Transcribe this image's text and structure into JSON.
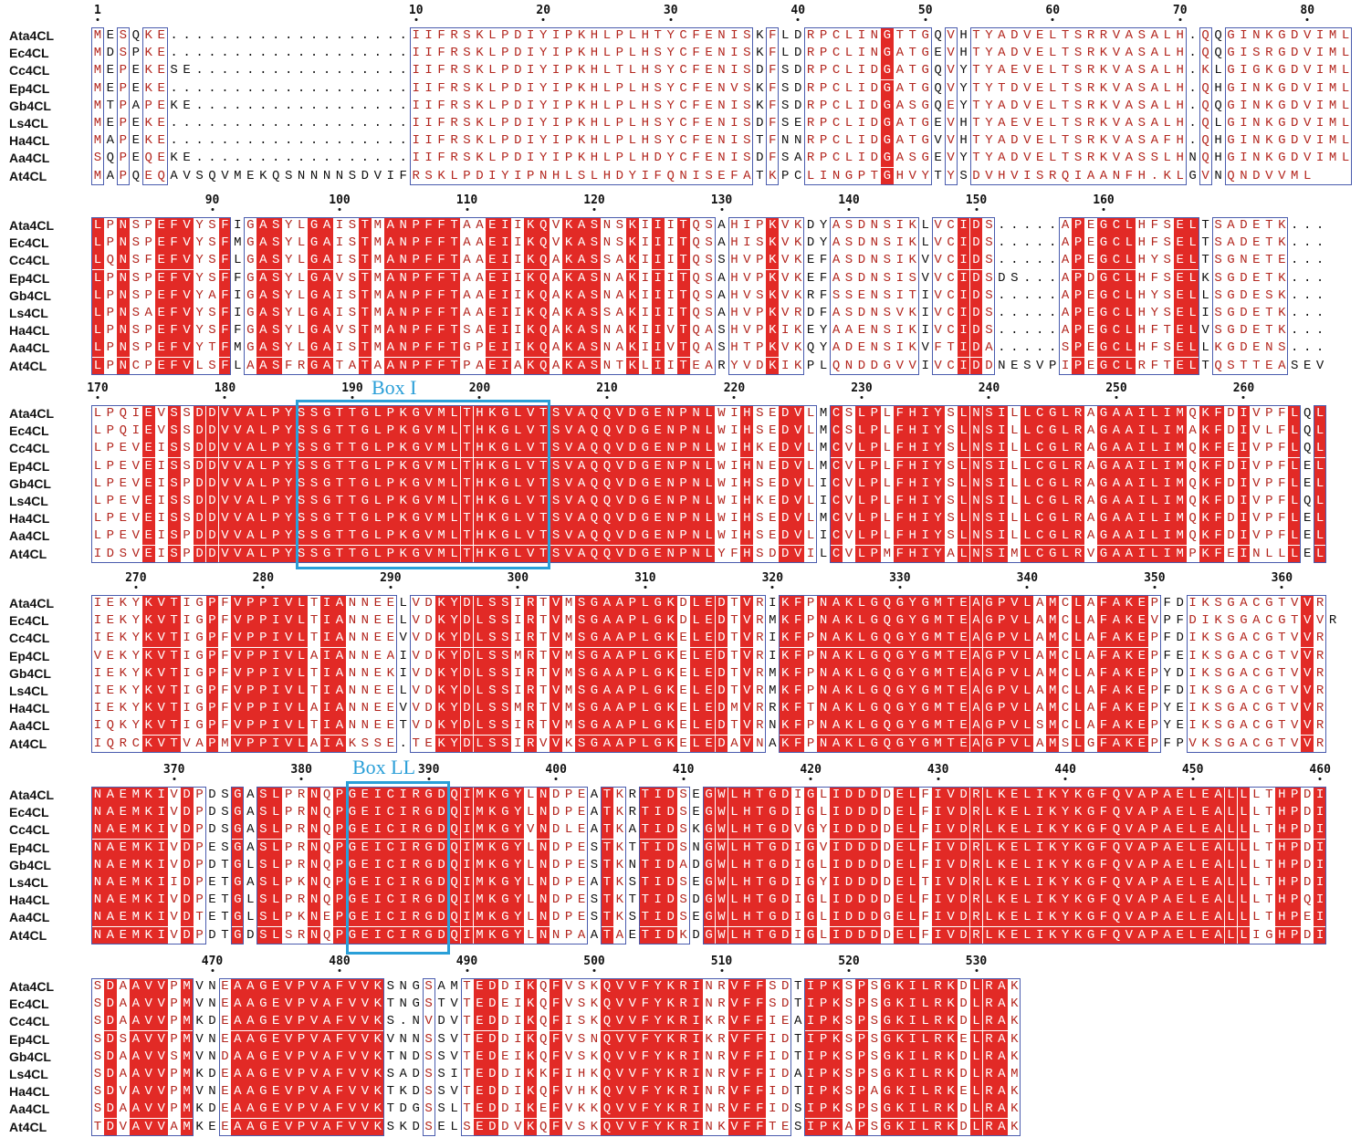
{
  "species": [
    "Ata4CL",
    "Ec4CL",
    "Cc4CL",
    "Ep4CL",
    "Gb4CL",
    "Ls4CL",
    "Ha4CL",
    "Aa4CL",
    "At4CL"
  ],
  "motifs": [
    {
      "label": "Box I",
      "block": 2
    },
    {
      "label": "Box LL",
      "block": 4
    }
  ],
  "blocks": [
    {
      "ticks": [
        {
          "label": "1",
          "col": 0
        },
        {
          "label": "10",
          "col": 25
        },
        {
          "label": "20",
          "col": 35
        },
        {
          "label": "30",
          "col": 45
        },
        {
          "label": "40",
          "col": 55
        },
        {
          "label": "50",
          "col": 65
        },
        {
          "label": "60",
          "col": 75
        },
        {
          "label": "70",
          "col": 85
        },
        {
          "label": "80",
          "col": 95
        }
      ],
      "rows": [
        "MESQKE...................IIFRSKLPDIYIPKHLPLHTYCFENISKFLDRPCLINGTTGQVHTYADVELTSRRVASALH.QQGINKGDVIML",
        "MDSPKE...................IIFRSKLPDIYIPKHLPLHSYCFENISKFLDRPCLINGATGEVHTYADVELTSRKVASALH.QQGISRGDVIML",
        "MEPEKESE.................IIFRSKLPDIYIPKHLTLHSYCFENISDFSDRPCLIDGATGQVYTYAEVELTSRKVASALH.KLGIGKGDVIML",
        "MEPEKE...................IIFRSKLPDIYIPKHLPLHSYCFENVSKFSDRPCLIDGATGQVYTYTDVELTSRKVASALH.QHGINKGDVIML",
        "MTPAPEKE.................IIFRSKLPDIYIPKHLPLHSYCFENISKFSDRPCLIDGASGQEYTYADVELTSRKVASALH.QQGINKGDVIML",
        "MEPEKE...................IIFRSKLPDIYIPKHLPLHSYCFENISDFSERPCLIDGATGEVHTYAEVELTSRKVASALH.QLGINKGDVIML",
        "MAPEKE...................IIFRSKLPDIYIPKHLPLHSYCFENISTFNNRPCLIDGATGVVHTYADVELTSRKVASAFH.QHGINKGDVIML",
        "SQPEQEKE.................IIFRSKLPDIYIPKHLPLHDYCFENISDFSARPCLIDGASGEVYTYADVELTSRKVASSLHNQHGINKGDVIML",
        "MAPQEQAVSQVMEKQSNNNNSDVIFRSKLPDIYIPNHLSLHDYIFQNISEFATKPCLINGPTGHVYTYSDVHVISRQIAANFH.KLGVNQNDVVML"
      ]
    },
    {
      "ticks": [
        {
          "label": "90",
          "col": 9
        },
        {
          "label": "100",
          "col": 19
        },
        {
          "label": "110",
          "col": 29
        },
        {
          "label": "120",
          "col": 39
        },
        {
          "label": "130",
          "col": 49
        },
        {
          "label": "140",
          "col": 59
        },
        {
          "label": "150",
          "col": 69
        },
        {
          "label": "160",
          "col": 79
        }
      ],
      "rows": [
        "LPNSPEFVYSFIGASYLGAISTMANPFFTAAEIIKQVKASNSKIIITQSAHIPKVKDYASDNSIKLVCIDS.....APEGCLHFSELTSADETK...",
        "LPNSPEFVYSFMGASYLGAISTMANPFFTAAEIIKQVKASNSKIIITQSAHISKVKDYASDNSIKLVCIDS.....APEGCLHFSELTSADETK...",
        "LQNSFEFVYSFLGASYLGAISTMANPFFTAAEIIKQAKASSAKIIITQSSHVPKVKEFASDNSIKVVCIDS.....APEGCLHYSELTSGNETE...",
        "LPNSPEFVYSFFGASYLGAVSTMANPFFTAAEIIKQAKASNAKIIITQSAHVPKVKEFASDNSISVVCIDSDS...APDGCLHFSELKSGDETK...",
        "LPNSPEFVYAFIGASYLGAISTMANPFFTAAEIIKQAKASNAKIIITQSAHVSKVKRFSSENSITIVCIDS.....APEGCLHYSELLSGDESK...",
        "LPNSAEFVYSFIGASYLGAISTMANPFFTAAEIIKQAKASSAKIIITQSAHVPKVRDFASDNSVKIVCIDS.....APEGCLHYSELISGDETK...",
        "LPNSPEFVYSFFGASYLGAVSTMANPFFTSAEIIKQAKASNAKIIVTQASHVPKIKEYAAENSIKIVCIDS.....APEGCLHFTELVSGDETK...",
        "LPNSPEFVYTFMGASYLGAISTMANPFFTGPEIIKQAKASNAKIIVTQASHTPKVKQYADENSIKVFTIDA.....SPEGCLHFSELLKGDENS...",
        "LPNCPEFVLSFLAASFRGATATAANPFFTPAEIAKQAKASNTKLIITEARYVDKIKPLQNDDGVVIVCIDDNESVPIPEGCLRFTELTQSTTEASEV"
      ]
    },
    {
      "ticks": [
        {
          "label": "170",
          "col": 0
        },
        {
          "label": "180",
          "col": 10
        },
        {
          "label": "190",
          "col": 20
        },
        {
          "label": "200",
          "col": 30
        },
        {
          "label": "210",
          "col": 40
        },
        {
          "label": "220",
          "col": 50
        },
        {
          "label": "230",
          "col": 60
        },
        {
          "label": "240",
          "col": 70
        },
        {
          "label": "250",
          "col": 80
        },
        {
          "label": "260",
          "col": 90
        }
      ],
      "rows": [
        "LPQIEVSSDDVVALPYSSGTTGLPKGVMLTHKGLVTSVAQQVDGENPNLWIHSEDVLMCSLPLFHIYSLNSILLCGLRAGAAILIMQKFDIVPFLQL",
        "LPQIEVSSDDVVALPYSSGTTGLPKGVMLTHKGLVTSVAQQVDGENPNLWIHSEDVLMCSLPLFHIYSLNSILLCGLRAGAAILIMAKFDIVLFLQL",
        "LPEVEISSDDVVALPYSSGTTGLPKGVMLTHKGLVTSVAQQVDGENPNLWIHKEDVLMCVLPLFHIYSLNSILLCGLRAGAAILIMQKFEIVPFLQL",
        "LPEVEISSDDVVALPYSSGTTGLPKGVMLTHKGLVTSVAQQVDGENPNLWIHNEDVLMCVLPLFHIYSLNSILLCGLRAGAAILIMQKFDIVPFLEL",
        "LPEVEISPDDVVALPYSSGTTGLPKGVMLTHKGLVTSVAQQVDGENPNLWIHSEDVLICVLPLFHIYSLNSILLCGLRAGAAILIMQKFDIVPFLEL",
        "LPEVEISSDDVVALPYSSGTTGLPKGVMLTHKGLVTSVAQQVDGENPNLWIHKEDVLICVLPLFHIYSLNSILLCGLRAGAAILIMQKFDIVPFLQL",
        "LPEVEISSDDVVALPYSSGTTGLPKGVMLTHKGLVTSVAQQVDGENPNLWIHSEDVLMCVLPLFHIYSLNSILLCGLRAGAAILIMQKFDIVPFLEL",
        "LPEVEISPDDVVALPYSSGTTGLPKGVMLTHKGLVTSVAQQVDGENPNLWIHSEDVLICVLPLFHIYSLNSILLCGLRAGAAILIMQKFDIVPFLEL",
        "IDSVEISPDDVVALPYSSGTTGLPKGVMLTHKGLVTSVAQQVDGENPNLYFHSDDVILCVLPMFHIYALNSIMLCGLRVGAAILIMPKFEINLLLEL"
      ]
    },
    {
      "ticks": [
        {
          "label": "270",
          "col": 3
        },
        {
          "label": "280",
          "col": 13
        },
        {
          "label": "290",
          "col": 23
        },
        {
          "label": "300",
          "col": 33
        },
        {
          "label": "310",
          "col": 43
        },
        {
          "label": "320",
          "col": 53
        },
        {
          "label": "330",
          "col": 63
        },
        {
          "label": "340",
          "col": 73
        },
        {
          "label": "350",
          "col": 83
        },
        {
          "label": "360",
          "col": 93
        }
      ],
      "rows": [
        "IEKYKVTIGPFVPPIVLTIANNEELVDKYDLSSIRTVMSGAAPLGKDLEDTVRIKFPNAKLGQGYGMTEAGPVLAMCLAFAKEPFDIKSGACGTVVR",
        "IEKYKVTIGPFVPPIVLTIANNEELVDKYDLSSIRTVMSGAAPLGKDLEDTVRMKFPNAKLGQGYGMTEAGPVLAMCLAFAKEVPFDIKSGACGTVVR",
        "IEKYKVTIGPFVPPIVLTIANNEEVVDKYDLSSIRTVMSGAAPLGKELEDTVRIKFPNAKLGQGYGMTEAGPVLAMCLAFAKEPFDIKSGACGTVVR",
        "VEKYKVTIGPFVPPIVLAIANNEAIVDKYDLSSMRTVMSGAAPLGKELEDTVRIKFPNAKLGQGYGMTEAGPVLAMCLAFAKEPFEIKSGACGTVVR",
        "IEKYKVTIGPFVPPIVLTIANNEKIVDKYDLSSIRTVMSGAAPLGKELEDTVRMKFPNAKLGQGYGMTEAGPVLAMCLAFAKEPYDIKSGACGTVVR",
        "IEKYKVTIGPFVPPIVLTIANNEELVDKYDLSSIRTVMSGAAPLGKELEDTVRMKFPNAKLGQGYGMTEAGPVLAMCLAFAKEPFDIKSGACGTVVR",
        "IEKYKVTIGPFVPPIVLAIANNEEVVDKYDLSSMRTVMSGAAPLGKELEDMVRRKFTNAKLGQGYGMTEAGPVLAMCLAFAKEPYEIKSGACGTVVR",
        "IQKYKVTIGPFVPPIVLTIANNEETVDKYDLSSIRTVMSGAAPLGKELEDTVRNKFPNAKLGQGYGMTEAGPVLSMCLAFAKEPYEIKSGACGTVVR",
        "IQRCKVTVAPMVPPIVLAIAKSSE.TEKYDLSSIRVVKSGAAPLGKELEDAVNAKFPNAKLGQGYGMTEAGPVLAMSLGFAKEPFPVKSGACGTVVR"
      ]
    },
    {
      "ticks": [
        {
          "label": "370",
          "col": 6
        },
        {
          "label": "380",
          "col": 16
        },
        {
          "label": "390",
          "col": 26
        },
        {
          "label": "400",
          "col": 36
        },
        {
          "label": "410",
          "col": 46
        },
        {
          "label": "420",
          "col": 56
        },
        {
          "label": "430",
          "col": 66
        },
        {
          "label": "440",
          "col": 76
        },
        {
          "label": "450",
          "col": 86
        },
        {
          "label": "460",
          "col": 96
        }
      ],
      "rows": [
        "NAEMKIVDPDSGASLPRNQPGEICIRGDQIMKGYLNDPEATKRTIDSEGWLHTGDIGLIDDDDELFIVDRLKELIKYKGFQVAPAELEALLLTHPDI",
        "NAEMKIVDPDSGASLPRNQPGEICIRGDQIMKGYLNDPEATKRTIDSEGWLHTGDIGLIDDDDELFIVDRLKELIKYKGFQVAPAELEALLLTHPDI",
        "NAEMKIVDPDSGASLPRNQPGEICIRGDQIMKGYVNDLEATKATIDSKGWLHTGDVGYIDDDDELFIVDRLKELIKYKGFQVAPAELEALLLTHPDI",
        "NAEMKIVDPESGASLPRNQPGEICIRGDQIMKGYLNDPESTKTTIDSNGWLHTGDIGVIDDDDELFIVDRLKELIKYKGFQVAPAELEALLLTHPDI",
        "NAEMKIVDPDTGLSLPRNQPGEICIRGDQIMKGYLNDPESTKNTIDADGWLHTGDIGLIDDDDELFIVDRLKELIKYKGFQVAPAELEALLLTHPDI",
        "NAEMKIIDPETGASLPKNQPGEICIRGDQIMKGYLNDPEATKSTIDSEGWLHTGDIGYIDDDDELTIVDRLKELIKYKGFQVAPAELEALLLTHPDI",
        "NAEMKIVDPETGLSLPRNQPGEICIRGDQIMKGYLNDPESTKTTIDSDGWLHTGDIGLIDDDDELFIVDRLKELIKYKGFQVAPAELEALLLTHPQI",
        "NAEMKIVDTETGLSLPKNEPGEICIRGDQIMKGYLNDPESTKSTIDSEGWLHTGDIGLIDDDGELFIVDRLKELIKYKGFQVAPAELEALLLTHPEI",
        "NAEMKIVDPDTGDSLSRNQPGEICIRGDQIMKGYLNNPAATAETIDKDGWLHTGDIGLIDDDDELFIVDRLKELIKYKGFQVAPAELEALLIGHPDI"
      ]
    },
    {
      "ticks": [
        {
          "label": "470",
          "col": 9
        },
        {
          "label": "480",
          "col": 19
        },
        {
          "label": "490",
          "col": 29
        },
        {
          "label": "500",
          "col": 39
        },
        {
          "label": "510",
          "col": 49
        },
        {
          "label": "520",
          "col": 59
        },
        {
          "label": "530",
          "col": 69
        }
      ],
      "rows": [
        "SDAAVVPMVNEAAGEVPVAFVVKSNGSAMTEDDIKQFVSKQVVFYKRINRVFFSDTIPKSPSGKILRKDLRAK",
        "SDAAVVPMVNEAAGEVPVAFVVKTNGSTVTEDEIKQFVSKQVVFYKRINRVFFSDTIPKSPSGKILRKDLRAK",
        "SDAAVVPMKDEAAGEVPVAFVVKS.NVDVTEDDIKQFISKQVVFYKRIKRVFFIEAIPKSPSGKILRKDLRAK",
        "SDSAVVPMVNEAAGEVPVAFVVKVNNSSVTEDDIKQFVSNQVVFYKRIKRVFFIDTIPKSPSGKILRKELRAK",
        "SDAAVVSMVNDAAGEVPVAFVVKTNDSSVTEDEIKQFVSKQVVFYKRINRVFFIDTIPKSPSGKILRKDLRAK",
        "SDAAVVPMKDEAAGEVPVAFVVKSADSSITEDDIKKFIHKQVVFYKRINRVFFIDAIPKSPSGKILRKDLRAM",
        "SDVAVVPMVNEAAGEVPVAFVVKTKDSSVTEDDIKQFVHKQVVFYKRINRVFFIDTIPKSPAGKILRKELRAK",
        "SDAAVVPMKDEAAGEVPVAFVVKTDGSSLTEDDIKEFVKKQVVFYKRINRVFFIDSIPKSPSGKILRKDLRAK",
        "TDVAVVAMKEEAAGEVPVAFVVKSKDSELSEDDVKQFVSKQVVFYKRINKVFFTESIPKAPSGKILRKDLRAK"
      ]
    }
  ]
}
